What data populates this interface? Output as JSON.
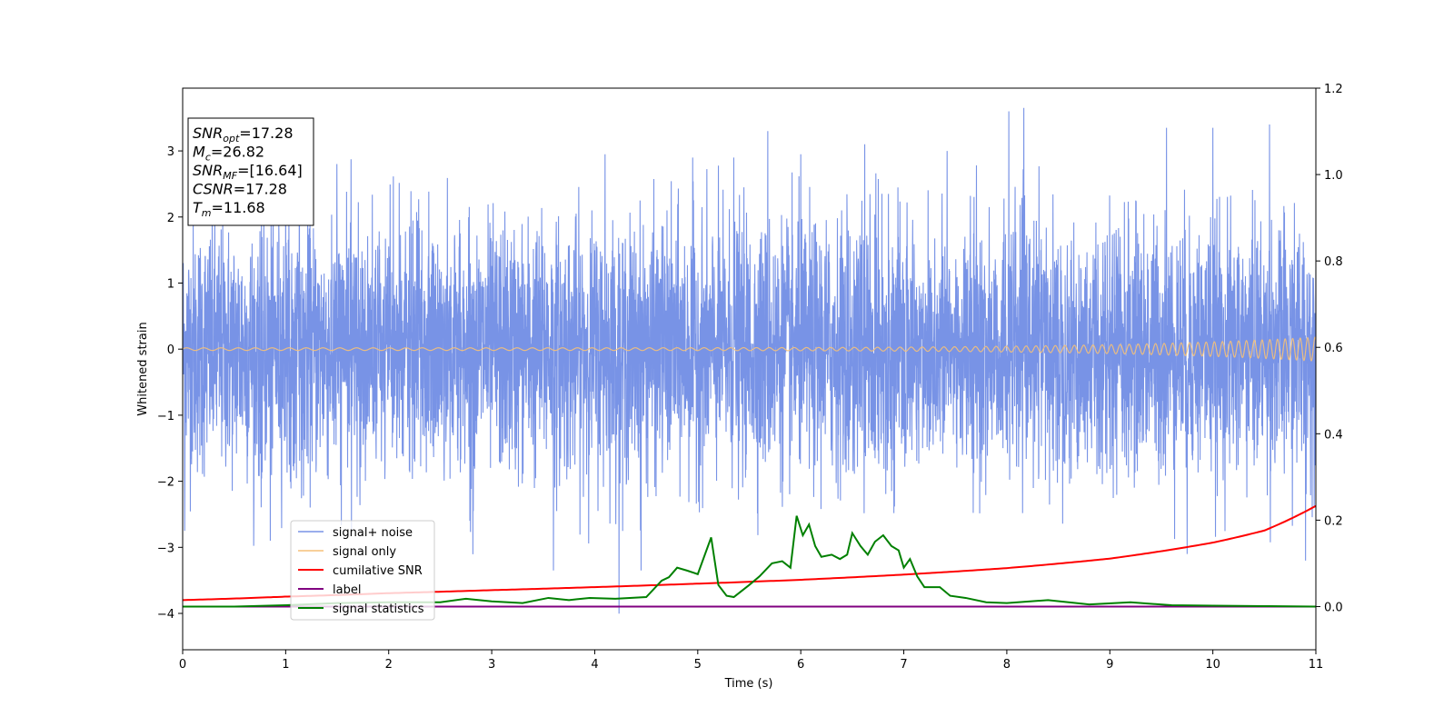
{
  "chart_data": {
    "type": "line",
    "xlabel": "Time (s)",
    "ylabel": "Whitened strain",
    "xlim": [
      0,
      11
    ],
    "ylim": [
      -4.55,
      3.95
    ],
    "y2lim": [
      -0.1,
      1.2
    ],
    "x_ticks": [
      "0",
      "1",
      "2",
      "3",
      "4",
      "5",
      "6",
      "7",
      "8",
      "9",
      "10",
      "11"
    ],
    "y_ticks": [
      "−4",
      "−3",
      "−2",
      "−1",
      "0",
      "1",
      "2",
      "3"
    ],
    "y2_ticks": [
      "0.0",
      "0.2",
      "0.4",
      "0.6",
      "0.8",
      "1.0",
      "1.2"
    ],
    "grid": false,
    "legend_position": "lower-left",
    "info_box": [
      {
        "base": "SNR",
        "sub": "opt",
        "value": "=17.28"
      },
      {
        "base": "M",
        "sub": "c",
        "value": "=26.82"
      },
      {
        "base": "SNR",
        "sub": "MF",
        "value": "=[16.64]"
      },
      {
        "base": "CSNR",
        "sub": "",
        "value": "=17.28"
      },
      {
        "base": "T",
        "sub": "m",
        "value": "=11.68"
      }
    ],
    "series": [
      {
        "name": "signal+ noise",
        "color": "#7893e6",
        "axis": "left",
        "noise_amplitude": 1.3,
        "peak_samples": [
          {
            "x": 0.02,
            "y": -2.75
          },
          {
            "x": 0.85,
            "y": -2.9
          },
          {
            "x": 1.0,
            "y": 2.85
          },
          {
            "x": 3.6,
            "y": -3.35
          },
          {
            "x": 4.1,
            "y": 2.95
          },
          {
            "x": 4.45,
            "y": -3.35
          },
          {
            "x": 4.95,
            "y": 2.9
          },
          {
            "x": 5.35,
            "y": 2.9
          },
          {
            "x": 5.68,
            "y": 3.3
          },
          {
            "x": 6.0,
            "y": 2.95
          },
          {
            "x": 6.62,
            "y": 3.1
          },
          {
            "x": 7.42,
            "y": 3.0
          },
          {
            "x": 8.02,
            "y": 3.6
          },
          {
            "x": 9.55,
            "y": 3.35
          },
          {
            "x": 9.75,
            "y": -3.1
          },
          {
            "x": 10.0,
            "y": 3.35
          },
          {
            "x": 10.55,
            "y": 3.4
          },
          {
            "x": 10.9,
            "y": -3.2
          }
        ]
      },
      {
        "name": "signal only",
        "color": "#f5c178",
        "axis": "left",
        "amplitude_start": 0.02,
        "amplitude_end": 0.18,
        "frequency_start": 6,
        "frequency_end": 14
      },
      {
        "name": "cumilative SNR",
        "color": "#ff0000",
        "axis": "right",
        "x": [
          0,
          1,
          2,
          3,
          4,
          5,
          6,
          7,
          8,
          9,
          10,
          10.5,
          11
        ],
        "values": [
          0.015,
          0.023,
          0.031,
          0.038,
          0.045,
          0.053,
          0.062,
          0.074,
          0.089,
          0.111,
          0.148,
          0.176,
          0.233
        ]
      },
      {
        "name": "label",
        "color": "#800080",
        "axis": "right",
        "x": [
          0,
          11
        ],
        "values": [
          0.0,
          0.0
        ]
      },
      {
        "name": "signal statistics",
        "color": "#008000",
        "axis": "right",
        "x": [
          0,
          0.5,
          1.0,
          1.5,
          2.0,
          2.5,
          2.75,
          3.0,
          3.3,
          3.55,
          3.75,
          3.95,
          4.2,
          4.5,
          4.65,
          4.72,
          4.8,
          4.9,
          5.0,
          5.13,
          5.2,
          5.28,
          5.35,
          5.42,
          5.5,
          5.6,
          5.72,
          5.82,
          5.9,
          5.96,
          6.02,
          6.08,
          6.14,
          6.2,
          6.3,
          6.38,
          6.45,
          6.5,
          6.58,
          6.65,
          6.72,
          6.8,
          6.88,
          6.95,
          7.0,
          7.06,
          7.13,
          7.2,
          7.35,
          7.45,
          7.6,
          7.8,
          8.0,
          8.4,
          8.8,
          9.2,
          9.6,
          10.0,
          10.5,
          11.0
        ],
        "values": [
          0.0,
          0.0,
          0.003,
          0.008,
          0.01,
          0.01,
          0.018,
          0.012,
          0.008,
          0.02,
          0.015,
          0.02,
          0.018,
          0.022,
          0.06,
          0.068,
          0.09,
          0.083,
          0.075,
          0.16,
          0.05,
          0.025,
          0.022,
          0.035,
          0.05,
          0.07,
          0.1,
          0.105,
          0.09,
          0.21,
          0.165,
          0.19,
          0.14,
          0.115,
          0.12,
          0.11,
          0.12,
          0.17,
          0.14,
          0.12,
          0.15,
          0.165,
          0.14,
          0.13,
          0.09,
          0.11,
          0.07,
          0.045,
          0.045,
          0.025,
          0.02,
          0.01,
          0.008,
          0.015,
          0.005,
          0.01,
          0.003,
          0.002,
          0.001,
          0.0
        ]
      }
    ]
  }
}
